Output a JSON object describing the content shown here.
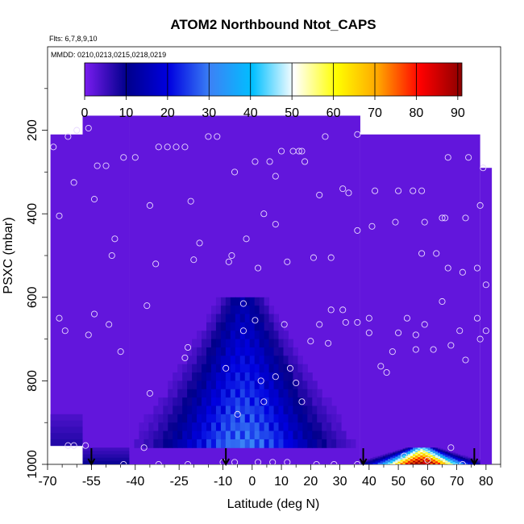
{
  "chart_data": {
    "type": "heatmap",
    "title": "ATOM2 Northbound Ntot_CAPS",
    "notes": [
      "Flts: 6,7,8,9,10",
      "MMDD: 0210,0213,0215,0218,0219"
    ],
    "xlabel": "Latitude (deg N)",
    "ylabel": "PSXC (mbar)",
    "xlim": [
      -70,
      85
    ],
    "ylim": [
      1000,
      0
    ],
    "x_ticks": [
      -70,
      -55,
      -40,
      -25,
      -10,
      0,
      10,
      20,
      30,
      40,
      50,
      60,
      70,
      80
    ],
    "y_ticks": [
      200,
      400,
      600,
      800,
      1000
    ],
    "colorbar": {
      "min": 0,
      "max": 91,
      "ticks": [
        0,
        10,
        20,
        30,
        40,
        50,
        60,
        70,
        80,
        90
      ],
      "colors": [
        "#7a1cf0",
        "#00008b",
        "#0000e0",
        "#3b82f6",
        "#00bfff",
        "#ffffff",
        "#ffff00",
        "#ffa500",
        "#ff0000",
        "#8b0000"
      ]
    },
    "columns": [
      {
        "lat_range": [
          -69,
          -42
        ],
        "top": 210,
        "bottom": 955,
        "low_band": {
          "p": [
            880,
            955
          ],
          "value": 8
        }
      },
      {
        "lat_range": [
          -58,
          -42
        ],
        "top": 165,
        "bottom": 1000,
        "low_band": {
          "p": [
            960,
            1000
          ],
          "value": 10
        }
      },
      {
        "lat_range": [
          -42,
          37
        ],
        "top": 165,
        "bottom": 1000,
        "plume": {
          "lat_center": -3,
          "p": [
            600,
            960
          ],
          "peak_value": 28
        }
      },
      {
        "lat_range": [
          37,
          78
        ],
        "top": 210,
        "bottom": 1000,
        "plume": {
          "lat_center": 58,
          "p": [
            960,
            1000
          ],
          "peak_value": 90
        }
      },
      {
        "lat_range": [
          78,
          82
        ],
        "top": 290,
        "bottom": 1000
      }
    ],
    "sample_points": [
      {
        "lat": -68,
        "p": 240
      },
      {
        "lat": -66,
        "p": 405
      },
      {
        "lat": -63,
        "p": 215
      },
      {
        "lat": -60,
        "p": 200
      },
      {
        "lat": -61,
        "p": 325
      },
      {
        "lat": -56,
        "p": 195
      },
      {
        "lat": -53,
        "p": 285
      },
      {
        "lat": -50,
        "p": 285
      },
      {
        "lat": -54,
        "p": 365
      },
      {
        "lat": -47,
        "p": 460
      },
      {
        "lat": -48,
        "p": 500
      },
      {
        "lat": -44,
        "p": 265
      },
      {
        "lat": -40,
        "p": 265
      },
      {
        "lat": -36,
        "p": 620
      },
      {
        "lat": -35,
        "p": 380
      },
      {
        "lat": -33,
        "p": 520
      },
      {
        "lat": -32,
        "p": 240
      },
      {
        "lat": -29,
        "p": 240
      },
      {
        "lat": -26,
        "p": 240
      },
      {
        "lat": -23,
        "p": 240
      },
      {
        "lat": -21,
        "p": 370
      },
      {
        "lat": -20,
        "p": 510
      },
      {
        "lat": -18,
        "p": 470
      },
      {
        "lat": -15,
        "p": 215
      },
      {
        "lat": -12,
        "p": 215
      },
      {
        "lat": -8,
        "p": 515
      },
      {
        "lat": -6,
        "p": 300
      },
      {
        "lat": -7,
        "p": 500
      },
      {
        "lat": -2,
        "p": 460
      },
      {
        "lat": 1,
        "p": 275
      },
      {
        "lat": 2,
        "p": 530
      },
      {
        "lat": 4,
        "p": 400
      },
      {
        "lat": 6,
        "p": 275
      },
      {
        "lat": 8,
        "p": 425
      },
      {
        "lat": 8,
        "p": 310
      },
      {
        "lat": 10,
        "p": 250
      },
      {
        "lat": 12,
        "p": 515
      },
      {
        "lat": 14,
        "p": 250
      },
      {
        "lat": 16,
        "p": 250
      },
      {
        "lat": 17,
        "p": 250
      },
      {
        "lat": 18,
        "p": 275
      },
      {
        "lat": 21,
        "p": 505
      },
      {
        "lat": 23,
        "p": 355
      },
      {
        "lat": 25,
        "p": 215
      },
      {
        "lat": 27,
        "p": 505
      },
      {
        "lat": 31,
        "p": 340
      },
      {
        "lat": 33,
        "p": 350
      },
      {
        "lat": 36,
        "p": 210
      },
      {
        "lat": 36,
        "p": 440
      },
      {
        "lat": 41,
        "p": 430
      },
      {
        "lat": 42,
        "p": 345
      },
      {
        "lat": 49,
        "p": 420
      },
      {
        "lat": 50,
        "p": 345
      },
      {
        "lat": 55,
        "p": 345
      },
      {
        "lat": 58,
        "p": 345
      },
      {
        "lat": 59,
        "p": 420
      },
      {
        "lat": 58,
        "p": 495
      },
      {
        "lat": 63,
        "p": 495
      },
      {
        "lat": 65,
        "p": 410
      },
      {
        "lat": 66,
        "p": 410
      },
      {
        "lat": 67,
        "p": 530
      },
      {
        "lat": 67,
        "p": 265
      },
      {
        "lat": 72,
        "p": 540
      },
      {
        "lat": 73,
        "p": 410
      },
      {
        "lat": 74,
        "p": 265
      },
      {
        "lat": 77,
        "p": 530
      },
      {
        "lat": 78,
        "p": 380
      },
      {
        "lat": 79,
        "p": 290
      },
      {
        "lat": 80,
        "p": 570
      },
      {
        "lat": -66,
        "p": 650
      },
      {
        "lat": -64,
        "p": 680
      },
      {
        "lat": -56,
        "p": 690
      },
      {
        "lat": -54,
        "p": 640
      },
      {
        "lat": -49,
        "p": 665
      },
      {
        "lat": -45,
        "p": 730
      },
      {
        "lat": -35,
        "p": 830
      },
      {
        "lat": -23,
        "p": 745
      },
      {
        "lat": -22,
        "p": 720
      },
      {
        "lat": -9,
        "p": 770
      },
      {
        "lat": -3,
        "p": 615
      },
      {
        "lat": -3,
        "p": 680
      },
      {
        "lat": 1,
        "p": 655
      },
      {
        "lat": 3,
        "p": 800
      },
      {
        "lat": 4,
        "p": 850
      },
      {
        "lat": 8,
        "p": 790
      },
      {
        "lat": 11,
        "p": 665
      },
      {
        "lat": 13,
        "p": 770
      },
      {
        "lat": 15,
        "p": 805
      },
      {
        "lat": 17,
        "p": 850
      },
      {
        "lat": 20,
        "p": 705
      },
      {
        "lat": 23,
        "p": 665
      },
      {
        "lat": 26,
        "p": 710
      },
      {
        "lat": 27,
        "p": 630
      },
      {
        "lat": 31,
        "p": 630
      },
      {
        "lat": 32,
        "p": 660
      },
      {
        "lat": 36,
        "p": 660
      },
      {
        "lat": 40,
        "p": 650
      },
      {
        "lat": 40,
        "p": 685
      },
      {
        "lat": 44,
        "p": 765
      },
      {
        "lat": 46,
        "p": 780
      },
      {
        "lat": 48,
        "p": 730
      },
      {
        "lat": 50,
        "p": 685
      },
      {
        "lat": 53,
        "p": 650
      },
      {
        "lat": 56,
        "p": 690
      },
      {
        "lat": 56,
        "p": 725
      },
      {
        "lat": 59,
        "p": 665
      },
      {
        "lat": 62,
        "p": 725
      },
      {
        "lat": 65,
        "p": 610
      },
      {
        "lat": 68,
        "p": 715
      },
      {
        "lat": 71,
        "p": 680
      },
      {
        "lat": 73,
        "p": 750
      },
      {
        "lat": 77,
        "p": 650
      },
      {
        "lat": 78,
        "p": 700
      },
      {
        "lat": 80,
        "p": 680
      },
      {
        "lat": -5,
        "p": 880
      },
      {
        "lat": -37,
        "p": 960
      },
      {
        "lat": -63,
        "p": 955
      },
      {
        "lat": -61,
        "p": 955
      },
      {
        "lat": -57,
        "p": 955
      },
      {
        "lat": -44,
        "p": 1000
      },
      {
        "lat": -32,
        "p": 1000
      },
      {
        "lat": -22,
        "p": 1000
      },
      {
        "lat": -10,
        "p": 995
      },
      {
        "lat": -6,
        "p": 995
      },
      {
        "lat": 2,
        "p": 995
      },
      {
        "lat": 7,
        "p": 995
      },
      {
        "lat": 12,
        "p": 995
      },
      {
        "lat": 22,
        "p": 1000
      },
      {
        "lat": 28,
        "p": 1000
      },
      {
        "lat": 36,
        "p": 1000
      },
      {
        "lat": 52,
        "p": 980
      },
      {
        "lat": 60,
        "p": 990
      },
      {
        "lat": 68,
        "p": 960
      },
      {
        "lat": 72,
        "p": 1000
      }
    ],
    "arrows": [
      {
        "lat": -55,
        "p": 1000
      },
      {
        "lat": -9,
        "p": 1000
      },
      {
        "lat": 38,
        "p": 1000
      },
      {
        "lat": 76,
        "p": 1000
      }
    ]
  }
}
